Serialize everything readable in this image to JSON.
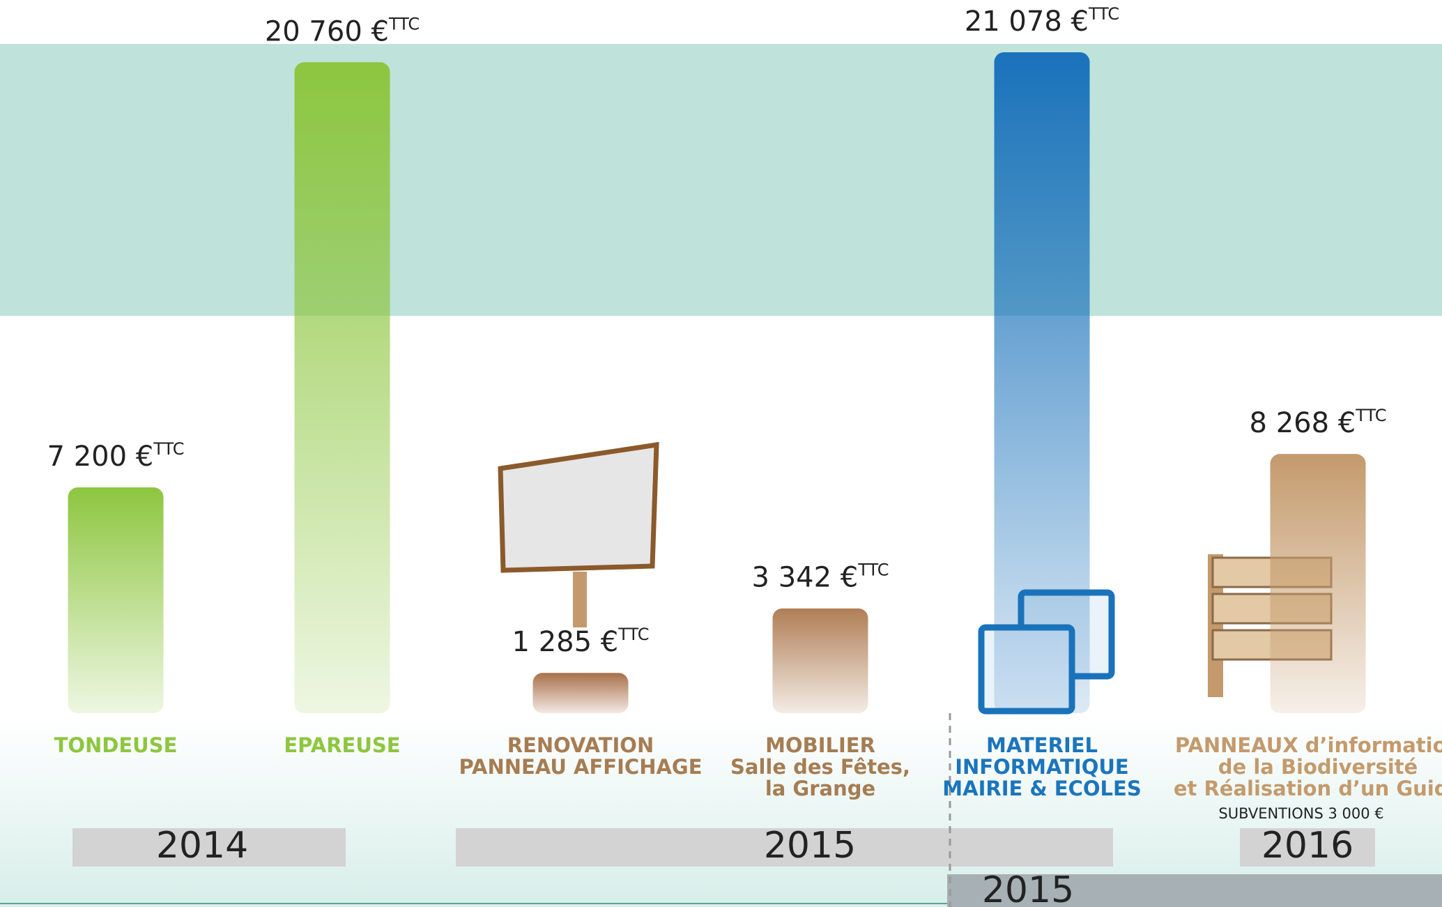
{
  "chart_data": {
    "type": "bar",
    "categories": [
      [
        "TONDEUSE"
      ],
      [
        "EPAREUSE"
      ],
      [
        "RENOVATION",
        "PANNEAU AFFICHAGE"
      ],
      [
        "MOBILIER",
        "Salle des Fêtes,",
        "la Grange"
      ],
      [
        "MATERIEL",
        "INFORMATIQUE",
        "MAIRIE & ECOLES"
      ],
      [
        "PANNEAUX d’information",
        "de la Biodiversité",
        "et Réalisation d’un Guide"
      ]
    ],
    "values": [
      7200,
      20760,
      1285,
      3342,
      21078,
      8268
    ],
    "value_labels": [
      "7 200 €",
      "20 760 €",
      "1 285 €",
      "3 342 €",
      "21 078 €",
      "8 268 €"
    ],
    "value_label_suffix": "TTC",
    "colors": [
      "#8dc63f",
      "#8dc63f",
      "#a8704a",
      "#b07e55",
      "#1a72bb",
      "#c49a6c"
    ],
    "label_colors": [
      "#8dc63f",
      "#8dc63f",
      "#a67c52",
      "#a67c52",
      "#1b75bc",
      "#c49a6c"
    ],
    "ylim": [
      0,
      21500
    ],
    "annotation": "SUBVENTIONS 3 000 €",
    "periods": [
      "2014",
      "2015",
      "2016",
      "2015"
    ]
  }
}
